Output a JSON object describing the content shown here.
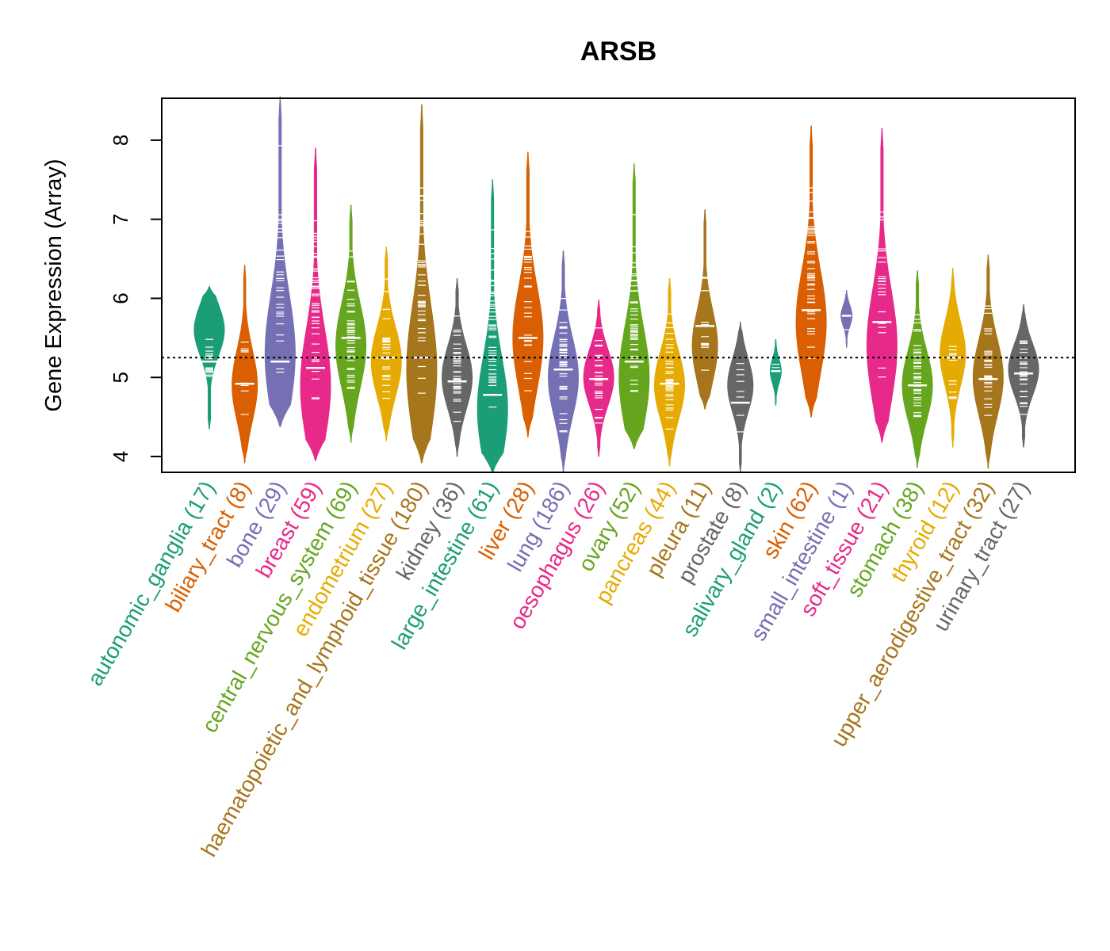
{
  "chart_data": {
    "type": "violin",
    "title": "ARSB",
    "xlabel": "",
    "ylabel": "Gene Expression (Array)",
    "ylim": [
      3.8,
      8.5
    ],
    "yticks": [
      4,
      5,
      6,
      7,
      8
    ],
    "reference_line": 5.25,
    "grid": false,
    "legend": "none",
    "categories": [
      {
        "label": "autonomic_ganglia (17)",
        "name": "autonomic_ganglia",
        "n": 17,
        "color": "#1B9E77",
        "min": 4.35,
        "max": 6.15,
        "median": 5.2,
        "peak": 5.6
      },
      {
        "label": "biliary_tract (8)",
        "name": "biliary_tract",
        "n": 8,
        "color": "#D95F02",
        "min": 3.92,
        "max": 6.42,
        "median": 4.92,
        "peak": 4.9
      },
      {
        "label": "bone (29)",
        "name": "bone",
        "n": 29,
        "color": "#7570B3",
        "min": 4.38,
        "max": 8.55,
        "median": 5.2,
        "peak": 5.3
      },
      {
        "label": "breast (59)",
        "name": "breast",
        "n": 59,
        "color": "#E7298A",
        "min": 3.95,
        "max": 7.9,
        "median": 5.12,
        "peak": 4.9
      },
      {
        "label": "central_nervous_system (69)",
        "name": "central_nervous_system",
        "n": 69,
        "color": "#66A61E",
        "min": 4.18,
        "max": 7.18,
        "median": 5.5,
        "peak": 5.4
      },
      {
        "label": "endometrium (27)",
        "name": "endometrium",
        "n": 27,
        "color": "#E6AB02",
        "min": 4.2,
        "max": 6.65,
        "median": 5.25,
        "peak": 5.2
      },
      {
        "label": "haematopoietic_and_lymphoid_tissue (180)",
        "name": "haematopoietic_and_lymphoid_tissue",
        "n": 180,
        "color": "#A6761D",
        "min": 3.92,
        "max": 8.45,
        "median": 5.25,
        "peak": 5.1
      },
      {
        "label": "kidney (36)",
        "name": "kidney",
        "n": 36,
        "color": "#666666",
        "min": 4.0,
        "max": 6.25,
        "median": 4.95,
        "peak": 5.0
      },
      {
        "label": "large_intestine (61)",
        "name": "large_intestine",
        "n": 61,
        "color": "#1B9E77",
        "min": 3.8,
        "max": 7.5,
        "median": 4.78,
        "peak": 4.6
      },
      {
        "label": "liver (28)",
        "name": "liver",
        "n": 28,
        "color": "#D95F02",
        "min": 4.25,
        "max": 7.85,
        "median": 5.5,
        "peak": 5.5
      },
      {
        "label": "lung (186)",
        "name": "lung",
        "n": 186,
        "color": "#7570B3",
        "min": 3.8,
        "max": 6.6,
        "median": 5.1,
        "peak": 5.0
      },
      {
        "label": "oesophagus (26)",
        "name": "oesophagus",
        "n": 26,
        "color": "#E7298A",
        "min": 4.0,
        "max": 5.98,
        "median": 4.98,
        "peak": 5.0
      },
      {
        "label": "ovary (52)",
        "name": "ovary",
        "n": 52,
        "color": "#66A61E",
        "min": 4.1,
        "max": 7.7,
        "median": 5.2,
        "peak": 5.0
      },
      {
        "label": "pancreas (44)",
        "name": "pancreas",
        "n": 44,
        "color": "#E6AB02",
        "min": 3.88,
        "max": 6.25,
        "median": 4.92,
        "peak": 4.9
      },
      {
        "label": "pleura (11)",
        "name": "pleura",
        "n": 11,
        "color": "#A6761D",
        "min": 4.6,
        "max": 7.12,
        "median": 5.65,
        "peak": 5.4
      },
      {
        "label": "prostate (8)",
        "name": "prostate",
        "n": 8,
        "color": "#666666",
        "min": 3.8,
        "max": 5.7,
        "median": 4.68,
        "peak": 4.9
      },
      {
        "label": "salivary_gland (2)",
        "name": "salivary_gland",
        "n": 2,
        "color": "#1B9E77",
        "min": 4.65,
        "max": 5.48,
        "median": 5.08,
        "peak": 5.08
      },
      {
        "label": "skin (62)",
        "name": "skin",
        "n": 62,
        "color": "#D95F02",
        "min": 4.5,
        "max": 8.18,
        "median": 5.85,
        "peak": 5.7
      },
      {
        "label": "small_intestine (1)",
        "name": "small_intestine",
        "n": 1,
        "color": "#7570B3",
        "min": 5.38,
        "max": 6.1,
        "median": 5.78,
        "peak": 5.78
      },
      {
        "label": "soft_tissue (21)",
        "name": "soft_tissue",
        "n": 21,
        "color": "#E7298A",
        "min": 4.18,
        "max": 8.15,
        "median": 5.7,
        "peak": 5.4
      },
      {
        "label": "stomach (38)",
        "name": "stomach",
        "n": 38,
        "color": "#66A61E",
        "min": 3.86,
        "max": 6.35,
        "median": 4.9,
        "peak": 4.9
      },
      {
        "label": "thyroid (12)",
        "name": "thyroid",
        "n": 12,
        "color": "#E6AB02",
        "min": 4.12,
        "max": 6.38,
        "median": 5.25,
        "peak": 5.3
      },
      {
        "label": "upper_aerodigestive_tract (32)",
        "name": "upper_aerodigestive_tract",
        "n": 32,
        "color": "#A6761D",
        "min": 3.85,
        "max": 6.55,
        "median": 4.98,
        "peak": 5.0
      },
      {
        "label": "urinary_tract (27)",
        "name": "urinary_tract",
        "n": 27,
        "color": "#666666",
        "min": 4.12,
        "max": 5.92,
        "median": 5.05,
        "peak": 5.1
      }
    ]
  }
}
